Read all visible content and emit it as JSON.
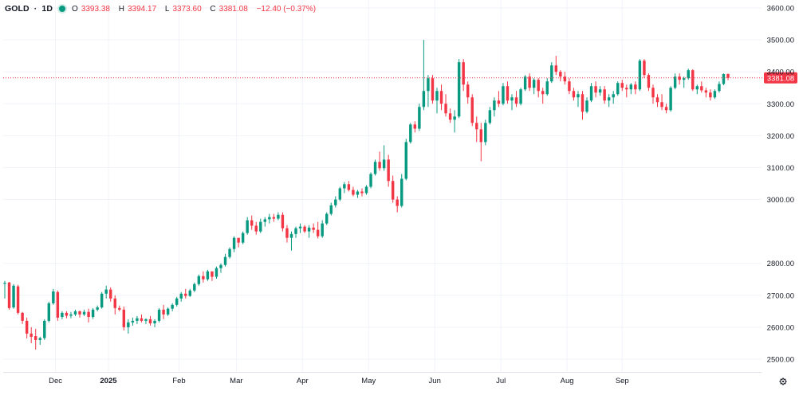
{
  "header": {
    "symbol": "GOLD",
    "separator": "·",
    "interval": "1D",
    "o_label": "O",
    "o_value": "3393.38",
    "h_label": "H",
    "h_value": "3394.17",
    "l_label": "L",
    "l_value": "3373.60",
    "c_label": "C",
    "c_value": "3381.08",
    "change": "−12.40 (−0.37%)"
  },
  "last_price_label": "3381.08",
  "settings_icon": "gear-icon",
  "colors": {
    "up": "#089981",
    "down": "#f23645",
    "grid": "#f0f3fa",
    "text": "#131722",
    "axis_text": "#131722"
  },
  "chart_data": {
    "type": "candlestick",
    "title": "",
    "ylim": [
      2460,
      3625
    ],
    "y_ticks": [
      "2500.00",
      "2600.00",
      "2700.00",
      "2800.00",
      "3000.00",
      "3100.00",
      "3200.00",
      "3300.00",
      "3400.00",
      "3500.00",
      "3600.00"
    ],
    "x_ticks": [
      "Dec",
      "2025",
      "Feb",
      "Mar",
      "Apr",
      "May",
      "Jun",
      "Jul",
      "Aug",
      "Sep"
    ],
    "last_close": 3381.08,
    "candles": [
      [
        2736,
        2745,
        2690,
        2739
      ],
      [
        2740,
        2742,
        2655,
        2660
      ],
      [
        2662,
        2735,
        2658,
        2730
      ],
      [
        2728,
        2733,
        2640,
        2645
      ],
      [
        2645,
        2648,
        2610,
        2620
      ],
      [
        2620,
        2630,
        2565,
        2580
      ],
      [
        2580,
        2600,
        2550,
        2570
      ],
      [
        2572,
        2595,
        2530,
        2560
      ],
      [
        2560,
        2570,
        2545,
        2566
      ],
      [
        2566,
        2625,
        2560,
        2620
      ],
      [
        2620,
        2680,
        2615,
        2675
      ],
      [
        2675,
        2720,
        2670,
        2712
      ],
      [
        2710,
        2715,
        2620,
        2630
      ],
      [
        2632,
        2650,
        2625,
        2645
      ],
      [
        2645,
        2650,
        2628,
        2636
      ],
      [
        2636,
        2648,
        2628,
        2640
      ],
      [
        2640,
        2655,
        2635,
        2650
      ],
      [
        2650,
        2652,
        2630,
        2640
      ],
      [
        2640,
        2655,
        2635,
        2648
      ],
      [
        2648,
        2658,
        2615,
        2632
      ],
      [
        2632,
        2660,
        2626,
        2655
      ],
      [
        2655,
        2668,
        2650,
        2662
      ],
      [
        2662,
        2710,
        2658,
        2705
      ],
      [
        2705,
        2730,
        2690,
        2718
      ],
      [
        2718,
        2725,
        2680,
        2690
      ],
      [
        2690,
        2700,
        2640,
        2660
      ],
      [
        2660,
        2668,
        2650,
        2655
      ],
      [
        2655,
        2665,
        2590,
        2600
      ],
      [
        2600,
        2625,
        2580,
        2615
      ],
      [
        2615,
        2630,
        2605,
        2620
      ],
      [
        2620,
        2635,
        2610,
        2628
      ],
      [
        2628,
        2640,
        2615,
        2620
      ],
      [
        2620,
        2628,
        2610,
        2625
      ],
      [
        2625,
        2635,
        2605,
        2612
      ],
      [
        2612,
        2625,
        2600,
        2620
      ],
      [
        2620,
        2660,
        2615,
        2655
      ],
      [
        2655,
        2670,
        2625,
        2640
      ],
      [
        2640,
        2662,
        2635,
        2658
      ],
      [
        2658,
        2675,
        2650,
        2670
      ],
      [
        2670,
        2695,
        2665,
        2690
      ],
      [
        2690,
        2710,
        2680,
        2705
      ],
      [
        2705,
        2720,
        2690,
        2698
      ],
      [
        2698,
        2720,
        2695,
        2715
      ],
      [
        2715,
        2740,
        2710,
        2735
      ],
      [
        2735,
        2765,
        2730,
        2760
      ],
      [
        2760,
        2775,
        2740,
        2750
      ],
      [
        2750,
        2780,
        2745,
        2775
      ],
      [
        2775,
        2770,
        2745,
        2758
      ],
      [
        2758,
        2790,
        2752,
        2785
      ],
      [
        2785,
        2800,
        2770,
        2795
      ],
      [
        2795,
        2830,
        2790,
        2820
      ],
      [
        2820,
        2850,
        2815,
        2845
      ],
      [
        2845,
        2885,
        2835,
        2880
      ],
      [
        2880,
        2875,
        2850,
        2865
      ],
      [
        2865,
        2900,
        2860,
        2895
      ],
      [
        2895,
        2945,
        2890,
        2935
      ],
      [
        2935,
        2950,
        2905,
        2918
      ],
      [
        2918,
        2930,
        2890,
        2900
      ],
      [
        2900,
        2940,
        2895,
        2930
      ],
      [
        2930,
        2945,
        2915,
        2938
      ],
      [
        2938,
        2955,
        2925,
        2945
      ],
      [
        2945,
        2955,
        2930,
        2940
      ],
      [
        2940,
        2960,
        2935,
        2952
      ],
      [
        2952,
        2960,
        2900,
        2910
      ],
      [
        2910,
        2920,
        2865,
        2880
      ],
      [
        2880,
        2900,
        2840,
        2892
      ],
      [
        2892,
        2915,
        2880,
        2910
      ],
      [
        2910,
        2925,
        2895,
        2915
      ],
      [
        2915,
        2920,
        2895,
        2900
      ],
      [
        2900,
        2920,
        2880,
        2912
      ],
      [
        2912,
        2925,
        2895,
        2905
      ],
      [
        2905,
        2930,
        2878,
        2885
      ],
      [
        2885,
        2935,
        2880,
        2925
      ],
      [
        2925,
        2960,
        2920,
        2955
      ],
      [
        2955,
        2990,
        2950,
        2982
      ],
      [
        2982,
        3010,
        2975,
        3000
      ],
      [
        3000,
        3040,
        2995,
        3035
      ],
      [
        3035,
        3055,
        3020,
        3048
      ],
      [
        3048,
        3058,
        3025,
        3030
      ],
      [
        3030,
        3040,
        3010,
        3015
      ],
      [
        3015,
        3030,
        3005,
        3025
      ],
      [
        3025,
        3035,
        3010,
        3020
      ],
      [
        3020,
        3045,
        3015,
        3040
      ],
      [
        3040,
        3085,
        3035,
        3080
      ],
      [
        3080,
        3125,
        3075,
        3118
      ],
      [
        3118,
        3150,
        3090,
        3098
      ],
      [
        3098,
        3170,
        3090,
        3125
      ],
      [
        3125,
        3140,
        3040,
        3058
      ],
      [
        3058,
        3075,
        2990,
        3000
      ],
      [
        3000,
        3010,
        2960,
        2980
      ],
      [
        2980,
        3080,
        2975,
        3065
      ],
      [
        3065,
        3190,
        3060,
        3180
      ],
      [
        3180,
        3240,
        3175,
        3235
      ],
      [
        3235,
        3245,
        3210,
        3222
      ],
      [
        3222,
        3300,
        3215,
        3290
      ],
      [
        3290,
        3500,
        3280,
        3340
      ],
      [
        3340,
        3390,
        3290,
        3380
      ],
      [
        3380,
        3390,
        3300,
        3310
      ],
      [
        3310,
        3350,
        3270,
        3340
      ],
      [
        3340,
        3360,
        3280,
        3300
      ],
      [
        3300,
        3330,
        3260,
        3270
      ],
      [
        3270,
        3285,
        3240,
        3250
      ],
      [
        3250,
        3280,
        3210,
        3260
      ],
      [
        3260,
        3440,
        3255,
        3430
      ],
      [
        3430,
        3440,
        3340,
        3360
      ],
      [
        3360,
        3370,
        3300,
        3320
      ],
      [
        3320,
        3330,
        3230,
        3240
      ],
      [
        3240,
        3260,
        3180,
        3220
      ],
      [
        3220,
        3240,
        3120,
        3180
      ],
      [
        3180,
        3250,
        3170,
        3240
      ],
      [
        3240,
        3290,
        3235,
        3280
      ],
      [
        3280,
        3320,
        3260,
        3310
      ],
      [
        3310,
        3340,
        3290,
        3300
      ],
      [
        3300,
        3365,
        3295,
        3355
      ],
      [
        3355,
        3370,
        3300,
        3310
      ],
      [
        3310,
        3330,
        3280,
        3320
      ],
      [
        3320,
        3340,
        3290,
        3300
      ],
      [
        3300,
        3350,
        3295,
        3345
      ],
      [
        3345,
        3390,
        3340,
        3385
      ],
      [
        3385,
        3395,
        3340,
        3350
      ],
      [
        3350,
        3380,
        3330,
        3375
      ],
      [
        3375,
        3380,
        3320,
        3340
      ],
      [
        3340,
        3350,
        3300,
        3330
      ],
      [
        3330,
        3380,
        3325,
        3370
      ],
      [
        3370,
        3430,
        3365,
        3420
      ],
      [
        3420,
        3450,
        3390,
        3400
      ],
      [
        3400,
        3405,
        3370,
        3385
      ],
      [
        3385,
        3400,
        3360,
        3370
      ],
      [
        3370,
        3380,
        3330,
        3340
      ],
      [
        3340,
        3350,
        3310,
        3320
      ],
      [
        3320,
        3340,
        3290,
        3330
      ],
      [
        3330,
        3340,
        3250,
        3275
      ],
      [
        3275,
        3320,
        3270,
        3310
      ],
      [
        3310,
        3365,
        3305,
        3355
      ],
      [
        3355,
        3370,
        3320,
        3335
      ],
      [
        3335,
        3355,
        3325,
        3345
      ],
      [
        3345,
        3355,
        3300,
        3310
      ],
      [
        3310,
        3330,
        3290,
        3320
      ],
      [
        3320,
        3340,
        3300,
        3330
      ],
      [
        3330,
        3370,
        3325,
        3365
      ],
      [
        3365,
        3375,
        3340,
        3350
      ],
      [
        3350,
        3360,
        3320,
        3345
      ],
      [
        3345,
        3365,
        3330,
        3360
      ],
      [
        3360,
        3370,
        3330,
        3345
      ],
      [
        3345,
        3440,
        3340,
        3435
      ],
      [
        3435,
        3440,
        3380,
        3390
      ],
      [
        3390,
        3395,
        3340,
        3350
      ],
      [
        3350,
        3360,
        3300,
        3320
      ],
      [
        3320,
        3330,
        3290,
        3305
      ],
      [
        3305,
        3330,
        3280,
        3290
      ],
      [
        3290,
        3300,
        3270,
        3280
      ],
      [
        3280,
        3355,
        3275,
        3350
      ],
      [
        3350,
        3395,
        3345,
        3385
      ],
      [
        3385,
        3395,
        3360,
        3375
      ],
      [
        3375,
        3385,
        3350,
        3380
      ],
      [
        3380,
        3410,
        3375,
        3405
      ],
      [
        3405,
        3408,
        3340,
        3345
      ],
      [
        3345,
        3360,
        3330,
        3355
      ],
      [
        3355,
        3370,
        3335,
        3342
      ],
      [
        3342,
        3350,
        3320,
        3335
      ],
      [
        3335,
        3345,
        3310,
        3320
      ],
      [
        3320,
        3345,
        3315,
        3340
      ],
      [
        3340,
        3370,
        3335,
        3362
      ],
      [
        3362,
        3395,
        3358,
        3393
      ],
      [
        3393.38,
        3394.17,
        3373.6,
        3381.08
      ]
    ]
  }
}
